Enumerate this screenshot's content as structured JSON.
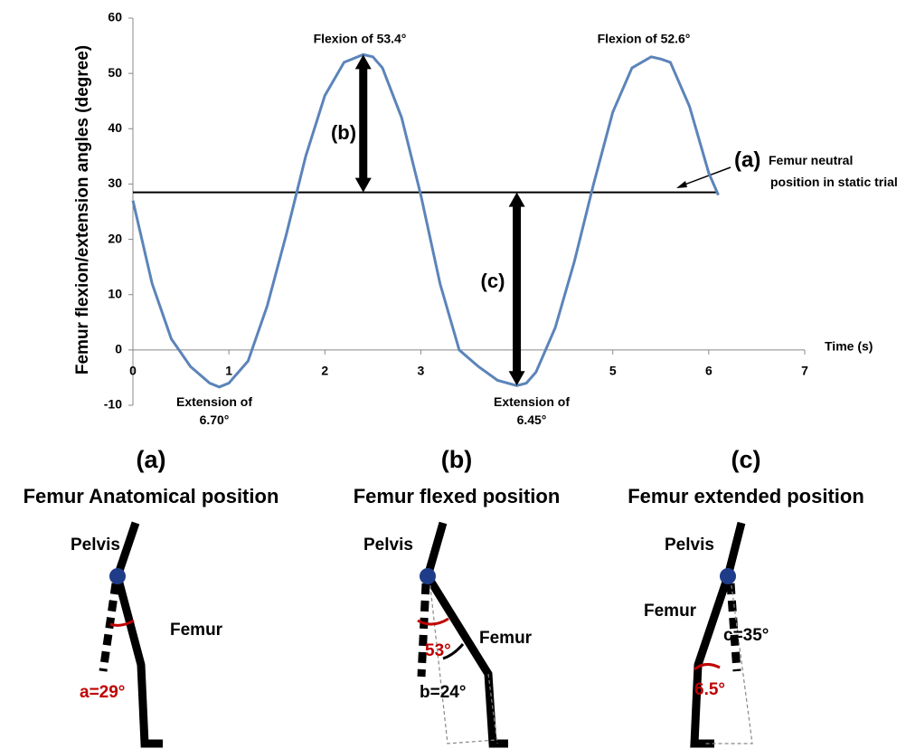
{
  "chart_data": {
    "type": "line",
    "y_label": "Femur flexion/extension  angles (degree)",
    "x_label": "Time (s)",
    "xlim": [
      0,
      7
    ],
    "xticks": [
      0,
      1,
      2,
      3,
      4,
      5,
      6,
      7
    ],
    "ylim": [
      -10,
      60
    ],
    "yticks": [
      -10,
      0,
      10,
      20,
      30,
      40,
      50,
      60
    ],
    "x": [
      0,
      0.2,
      0.4,
      0.6,
      0.8,
      0.9,
      1.0,
      1.2,
      1.4,
      1.6,
      1.8,
      2.0,
      2.2,
      2.4,
      2.5,
      2.6,
      2.8,
      3.0,
      3.2,
      3.4,
      3.6,
      3.8,
      4.0,
      4.1,
      4.2,
      4.4,
      4.6,
      4.8,
      5.0,
      5.2,
      5.4,
      5.5,
      5.6,
      5.8,
      6.0,
      6.1
    ],
    "series": [
      {
        "color": "#5b84b9",
        "values": [
          27,
          12,
          2,
          -3,
          -6,
          -6.7,
          -6,
          -2,
          8,
          21,
          35,
          46,
          52,
          53.4,
          53,
          51,
          42,
          28,
          12,
          0,
          -3,
          -5.5,
          -6.45,
          -6,
          -4,
          4,
          16,
          30,
          43,
          51,
          53,
          52.6,
          52,
          44,
          32,
          28
        ]
      }
    ],
    "neutral": 28.5,
    "annotations": {
      "flexion_1": "Flexion of 53.4°",
      "flexion_2": "Flexion of 52.6°",
      "extension_1": [
        "Extension of",
        "6.70°"
      ],
      "extension_2": [
        "Extension of",
        "6.45°"
      ],
      "a": "(a)",
      "neutral": [
        "Femur neutral",
        "position in static trial"
      ],
      "b": "(b)",
      "c": "(c)"
    }
  },
  "panels": [
    {
      "letter": "(a)",
      "title": "Femur Anatomical position",
      "pelvis": "Pelvis",
      "femur": "Femur",
      "angles": [
        "a=29°"
      ]
    },
    {
      "letter": "(b)",
      "title": "Femur flexed position",
      "pelvis": "Pelvis",
      "femur": "Femur",
      "angles": [
        "53°",
        "b=24°"
      ]
    },
    {
      "letter": "(c)",
      "title": "Femur extended position",
      "pelvis": "Pelvis",
      "femur": "Femur",
      "angles": [
        "6.5°",
        "c=35°"
      ]
    }
  ]
}
